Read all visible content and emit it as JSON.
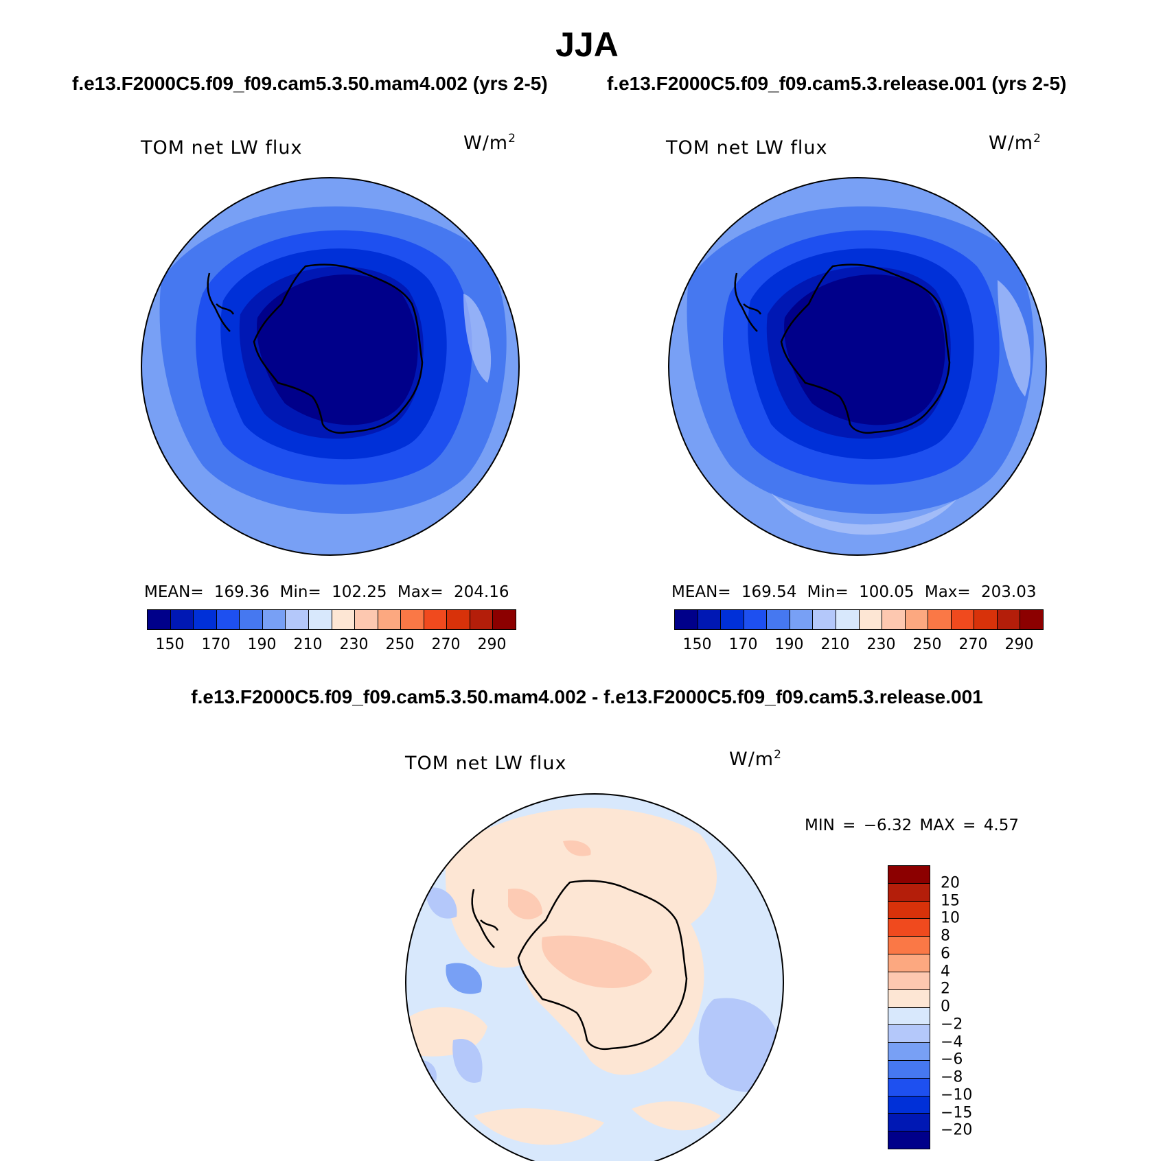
{
  "title": "JJA",
  "panels": [
    {
      "header": "f.e13.F2000C5.f09_f09.cam5.3.50.mam4.002 (yrs 2-5)",
      "label": "TOM net LW flux",
      "units": "W/m",
      "units_sup": "2",
      "stats": "MEAN= 169.36   Min= 102.25   Max= 204.16"
    },
    {
      "header": "f.e13.F2000C5.f09_f09.cam5.3.release.001 (yrs 2-5)",
      "label": "TOM net LW flux",
      "units": "W/m",
      "units_sup": "2",
      "stats": "MEAN= 169.54   Min= 100.05   Max= 203.03"
    }
  ],
  "colorbar": {
    "ticks": [
      "150",
      "170",
      "190",
      "210",
      "230",
      "250",
      "270",
      "290"
    ],
    "colors": [
      "#00008a",
      "#0018b4",
      "#0030d8",
      "#1e50f0",
      "#4678f0",
      "#78a0f5",
      "#b4c8fa",
      "#d8e8fc",
      "#fde6d4",
      "#fdc8b0",
      "#fca880",
      "#fa7846",
      "#f04a1e",
      "#d8320a",
      "#b41e0a",
      "#8c0000"
    ]
  },
  "diff": {
    "header": "f.e13.F2000C5.f09_f09.cam5.3.50.mam4.002 - f.e13.F2000C5.f09_f09.cam5.3.release.001",
    "label": "TOM net LW flux",
    "units": "W/m",
    "units_sup": "2",
    "minmax": "MIN =   −6.32 MAX =    4.57",
    "ticks": [
      "20",
      "15",
      "10",
      "8",
      "6",
      "4",
      "2",
      "0",
      "−2",
      "−4",
      "−6",
      "−8",
      "−10",
      "−15",
      "−20"
    ],
    "colors": [
      "#8c0000",
      "#b41e0a",
      "#d8320a",
      "#f04a1e",
      "#fa7846",
      "#fca880",
      "#fdc8b0",
      "#fde6d4",
      "#d8e8fc",
      "#b4c8fa",
      "#78a0f5",
      "#4678f0",
      "#1e50f0",
      "#0030d8",
      "#0018b4",
      "#00008a"
    ]
  }
}
